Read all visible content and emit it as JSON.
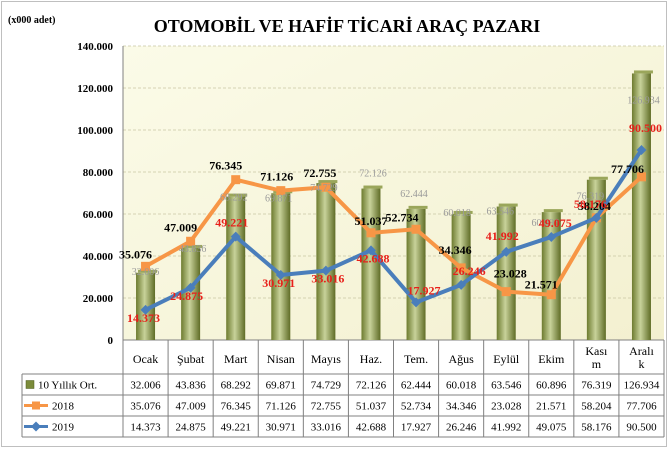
{
  "chart_data": {
    "type": "bar",
    "title": "OTOMOBİL VE HAFİF TİCARİ ARAÇ PAZARI",
    "unit_label": "(x000 adet)",
    "ylim": [
      0,
      140000
    ],
    "yticks": [
      "0",
      "20.000",
      "40.000",
      "60.000",
      "80.000",
      "100.000",
      "120.000",
      "140.000"
    ],
    "ytick_values": [
      0,
      20000,
      40000,
      60000,
      80000,
      100000,
      120000,
      140000
    ],
    "grid": "horizontal dashed",
    "legend": "data-table",
    "categories": [
      "Ocak",
      "Şubat",
      "Mart",
      "Nisan",
      "Mayıs",
      "Haz.",
      "Tem.",
      "Ağus",
      "Eylül",
      "Ekim",
      "Kası m",
      "Aralı k"
    ],
    "series": [
      {
        "name": "10 Yıllık Ort.",
        "kind": "bar",
        "color": "#7b8b3a",
        "values": [
          32006,
          43836,
          68292,
          69871,
          74729,
          72126,
          62444,
          60018,
          63546,
          60896,
          76319,
          126934
        ],
        "labels": [
          "32.006",
          "43.836",
          "68.292",
          "69.871",
          "74.729",
          "72.126",
          "62.444",
          "60.018",
          "63.546",
          "60.896",
          "76.319",
          "126.934"
        ]
      },
      {
        "name": "2018",
        "kind": "line",
        "color": "#f79646",
        "values": [
          35076,
          47009,
          76345,
          71126,
          72755,
          51037,
          52734,
          34346,
          23028,
          21571,
          58204,
          77706
        ],
        "labels": [
          "35.076",
          "47.009",
          "76.345",
          "71.126",
          "72.755",
          "51.037",
          "52.734",
          "34.346",
          "23.028",
          "21.571",
          "58.204",
          "77.706"
        ]
      },
      {
        "name": "2019",
        "kind": "line",
        "color": "#4a7ebb",
        "values": [
          14373,
          24875,
          49221,
          30971,
          33016,
          42688,
          17927,
          26246,
          41992,
          49075,
          58176,
          90500
        ],
        "labels": [
          "14.373",
          "24.875",
          "49.221",
          "30.971",
          "33.016",
          "42.688",
          "17.927",
          "26.246",
          "41.992",
          "49.075",
          "58.176",
          "90.500"
        ]
      }
    ]
  }
}
